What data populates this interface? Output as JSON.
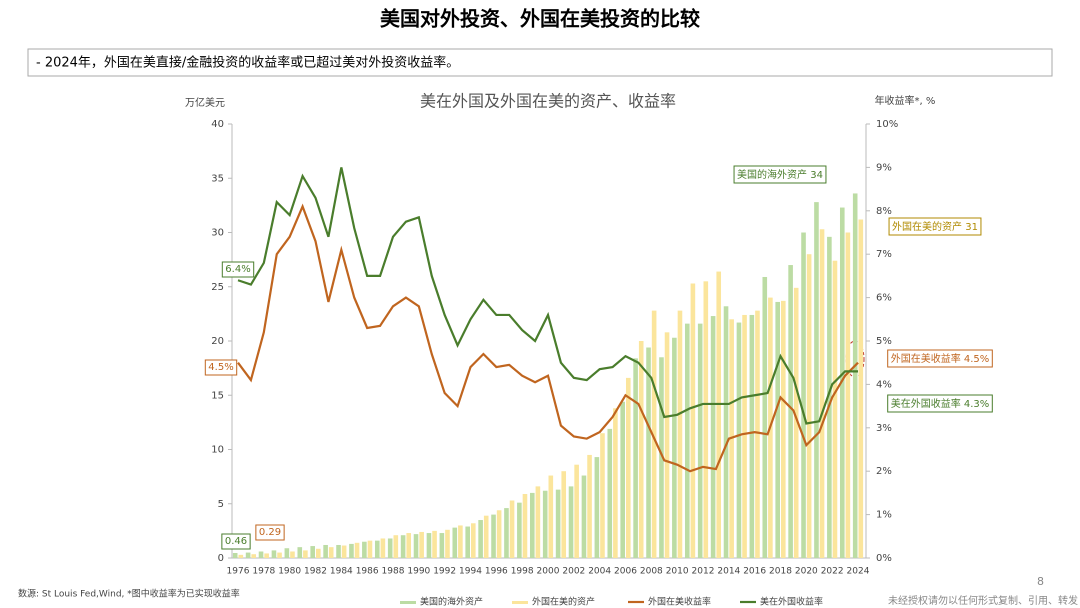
{
  "header": {
    "title": "美国对外投资、外国在美投资的比较",
    "note": "- 2024年，外国在美直接/金融投资的收益率或已超过美对外投资收益率。"
  },
  "chart_data": {
    "type": "bar-line",
    "title": "美在外国及外国在美的资产、收益率",
    "y_label": "万亿美元",
    "y2_label": "年收益率*, %",
    "categories": [
      "1976",
      null,
      "1978",
      null,
      "1980",
      null,
      "1982",
      null,
      "1984",
      null,
      "1986",
      null,
      "1988",
      null,
      "1990",
      null,
      "1992",
      null,
      "1994",
      null,
      "1996",
      null,
      "1998",
      null,
      "2000",
      null,
      "2002",
      null,
      "2004",
      null,
      "2006",
      null,
      "2008",
      null,
      "2010",
      null,
      "2012",
      null,
      "2014",
      null,
      "2016",
      null,
      "2018",
      null,
      "2020",
      null,
      "2022",
      null,
      "2024"
    ],
    "series": [
      {
        "name": "美国的海外资产",
        "type": "bar",
        "color": "#bcdca4",
        "values": [
          0.46,
          0.5,
          0.6,
          0.7,
          0.9,
          1.0,
          1.1,
          1.2,
          1.2,
          1.3,
          1.5,
          1.6,
          1.8,
          2.1,
          2.2,
          2.3,
          2.3,
          2.8,
          2.9,
          3.5,
          4.0,
          4.6,
          5.1,
          6.0,
          6.2,
          6.3,
          6.6,
          7.6,
          9.3,
          11.9,
          14.4,
          18.4,
          19.4,
          18.5,
          20.3,
          21.6,
          21.6,
          22.3,
          23.2,
          21.7,
          22.4,
          25.9,
          23.6,
          27.0,
          30.0,
          32.8,
          29.6,
          32.3,
          33.6
        ]
      },
      {
        "name": "外国在美的资产",
        "type": "bar",
        "color": "#fbe59c",
        "values": [
          0.29,
          0.35,
          0.42,
          0.5,
          0.6,
          0.7,
          0.85,
          1.0,
          1.15,
          1.4,
          1.6,
          1.8,
          2.1,
          2.3,
          2.4,
          2.5,
          2.6,
          3.0,
          3.2,
          3.9,
          4.4,
          5.3,
          5.9,
          6.6,
          7.6,
          8.0,
          8.6,
          9.5,
          11.5,
          13.8,
          16.6,
          20.0,
          22.8,
          20.8,
          22.8,
          25.3,
          25.5,
          26.4,
          22.0,
          22.4,
          22.8,
          24.0,
          23.7,
          24.9,
          28.0,
          30.3,
          27.4,
          30.0,
          31.2
        ]
      },
      {
        "name": "外国在美收益率",
        "type": "line",
        "axis": "y2",
        "color": "#c0651f",
        "values": [
          4.5,
          4.1,
          5.2,
          7.0,
          7.4,
          8.1,
          7.3,
          5.9,
          7.1,
          6.0,
          5.3,
          5.35,
          5.8,
          6.0,
          5.8,
          4.7,
          3.8,
          3.5,
          4.4,
          4.7,
          4.4,
          4.45,
          4.2,
          4.05,
          4.2,
          3.05,
          2.8,
          2.75,
          2.9,
          3.25,
          3.75,
          3.55,
          2.9,
          2.25,
          2.15,
          2.0,
          2.1,
          2.05,
          2.75,
          2.85,
          2.9,
          2.85,
          3.7,
          3.4,
          2.6,
          2.9,
          3.7,
          4.2,
          4.5
        ]
      },
      {
        "name": "美在外国收益率",
        "type": "line",
        "axis": "y2",
        "color": "#4a7d2c",
        "values": [
          6.4,
          6.3,
          6.8,
          8.2,
          7.9,
          8.8,
          8.3,
          7.4,
          9.0,
          7.6,
          6.5,
          6.5,
          7.4,
          7.75,
          7.85,
          6.5,
          5.6,
          4.9,
          5.5,
          5.95,
          5.6,
          5.6,
          5.25,
          5.0,
          5.6,
          4.5,
          4.15,
          4.1,
          4.35,
          4.4,
          4.65,
          4.5,
          4.15,
          3.25,
          3.3,
          3.45,
          3.55,
          3.55,
          3.55,
          3.7,
          3.75,
          3.8,
          4.65,
          4.15,
          3.1,
          3.15,
          4.0,
          4.3,
          4.3
        ]
      }
    ],
    "ylim": [
      0,
      40
    ],
    "yticks": [
      0,
      5,
      10,
      15,
      20,
      25,
      30,
      35,
      40
    ],
    "y2lim": [
      0,
      10
    ],
    "y2ticks": [
      {
        "value": 0,
        "label": "0%"
      },
      {
        "value": 1,
        "label": "1%"
      },
      {
        "value": 2,
        "label": "2%"
      },
      {
        "value": 3,
        "label": "3%"
      },
      {
        "value": 4,
        "label": "4%"
      },
      {
        "value": 5,
        "label": "5%"
      },
      {
        "value": 6,
        "label": "6%"
      },
      {
        "value": 7,
        "label": "7%"
      },
      {
        "value": 8,
        "label": "8%"
      },
      {
        "value": 9,
        "label": "9%"
      },
      {
        "value": 10,
        "label": "10%"
      }
    ],
    "annotations": [
      {
        "text": "6.4%",
        "color": "#4a7d2c"
      },
      {
        "text": "4.5%",
        "color": "#c0651f"
      },
      {
        "text": "0.46",
        "color": "#4a7d2c"
      },
      {
        "text": "0.29",
        "color": "#c0651f"
      },
      {
        "text": "美国的海外资产  34",
        "color": "#4a7d2c"
      },
      {
        "text": "外国在美的资产  31",
        "color": "#b08a00"
      },
      {
        "text": "外国在美收益率  4.5%",
        "color": "#c0651f"
      },
      {
        "text": "美在外国收益率  4.3%",
        "color": "#4a7d2c"
      }
    ]
  },
  "footer": {
    "source": "数源: St Louis Fed,Wind, *图中收益率为已实现收益率",
    "page": "8",
    "disclaimer": "未经授权请勿以任何形式复制、引用、转发"
  }
}
